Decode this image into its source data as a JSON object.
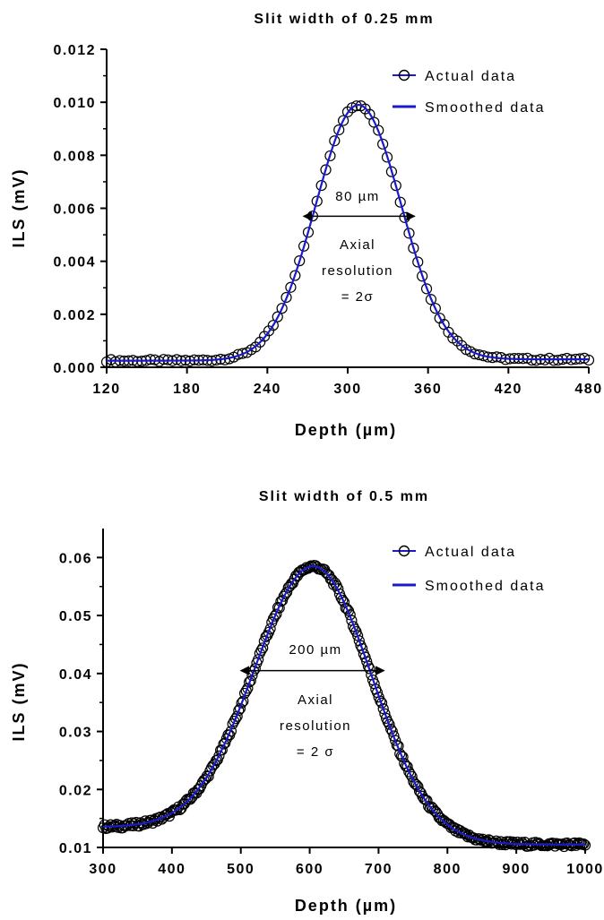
{
  "chart_data": [
    {
      "type": "scatter",
      "title": "Slit width of 0.25 mm",
      "xlabel": "Depth (µm)",
      "ylabel": "ILS (mV)",
      "xlim": [
        120,
        480
      ],
      "ylim": [
        0.0,
        0.012
      ],
      "xticks": [
        "120",
        "180",
        "240",
        "300",
        "360",
        "420",
        "480"
      ],
      "yticks": [
        "0.000",
        "0.002",
        "0.004",
        "0.006",
        "0.008",
        "0.010",
        "0.012"
      ],
      "legend_position": "top-right",
      "grid": false,
      "peak": {
        "x": 308,
        "y": 0.0099
      },
      "baseline": {
        "left": 0.00025,
        "right": 0.0003
      },
      "sigma": 32,
      "series": [
        {
          "name": "Actual data",
          "style": "circles",
          "color": "#000000"
        },
        {
          "name": "Smoothed data",
          "style": "line",
          "color": "#1a1acc"
        }
      ],
      "annotations": {
        "width_label": "80 µm",
        "width_arrow": {
          "x1": 267,
          "x2": 350,
          "y": 0.0057
        },
        "text_lines": [
          "Axial",
          "resolution",
          "= 2σ"
        ]
      }
    },
    {
      "type": "scatter",
      "title": "Slit width of 0.5 mm",
      "xlabel": "Depth (µm)",
      "ylabel": "ILS (mV)",
      "xlim": [
        300,
        1000
      ],
      "ylim": [
        0.01,
        0.065
      ],
      "xticks": [
        "300",
        "400",
        "500",
        "600",
        "700",
        "800",
        "900",
        "1000"
      ],
      "yticks": [
        "0.01",
        "0.02",
        "0.03",
        "0.04",
        "0.05",
        "0.06"
      ],
      "legend_position": "top-right",
      "grid": false,
      "peak": {
        "x": 605,
        "y": 0.0585
      },
      "baseline": {
        "left": 0.0135,
        "right": 0.0105
      },
      "sigma": 85,
      "series": [
        {
          "name": "Actual data",
          "style": "circles",
          "color": "#000000"
        },
        {
          "name": "Smoothed data",
          "style": "line",
          "color": "#1a1acc"
        }
      ],
      "annotations": {
        "width_label": "200 µm",
        "width_arrow": {
          "x1": 500,
          "x2": 708,
          "y": 0.0405
        },
        "text_lines": [
          "Axial",
          "resolution",
          "= 2 σ"
        ]
      }
    }
  ]
}
